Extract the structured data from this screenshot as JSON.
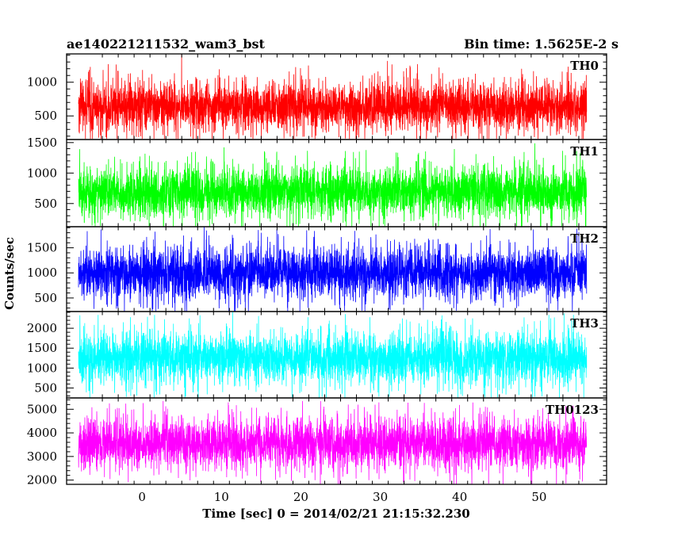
{
  "figure": {
    "title_left": "ae140221211532_wam3_bst",
    "title_right": "Bin time: 1.5625E-2 s",
    "xlabel": "Time [sec] 0 = 2014/02/21 21:15:32.230",
    "ylabel": "Counts/sec"
  },
  "chart_data": [
    {
      "type": "line",
      "name": "TH0",
      "color": "#ff0000",
      "xlim": [
        -9.5,
        58.5
      ],
      "ylim": [
        150,
        1420
      ],
      "yticks": [
        500,
        1000
      ],
      "data": {
        "x_start": -8.0,
        "x_end": 56.0,
        "bin_time": 0.015625,
        "min": 160,
        "max": 1420,
        "mean": 640,
        "spread": 170
      }
    },
    {
      "type": "line",
      "name": "TH1",
      "color": "#00ff00",
      "xlim": [
        -9.5,
        58.5
      ],
      "ylim": [
        120,
        1550
      ],
      "yticks": [
        500,
        1000,
        1500
      ],
      "data": {
        "x_start": -8.0,
        "x_end": 56.0,
        "bin_time": 0.015625,
        "min": 120,
        "max": 1550,
        "mean": 690,
        "spread": 190
      }
    },
    {
      "type": "line",
      "name": "TH2",
      "color": "#0000ff",
      "xlim": [
        -9.5,
        58.5
      ],
      "ylim": [
        230,
        1920
      ],
      "yticks": [
        500,
        1000,
        1500
      ],
      "data": {
        "x_start": -8.0,
        "x_end": 56.0,
        "bin_time": 0.015625,
        "min": 230,
        "max": 1920,
        "mean": 1000,
        "spread": 240
      }
    },
    {
      "type": "line",
      "name": "TH3",
      "color": "#00ffff",
      "xlim": [
        -9.5,
        58.5
      ],
      "ylim": [
        250,
        2420
      ],
      "yticks": [
        500,
        1000,
        1500,
        2000
      ],
      "data": {
        "x_start": -8.0,
        "x_end": 56.0,
        "bin_time": 0.015625,
        "min": 250,
        "max": 2420,
        "mean": 1250,
        "spread": 300
      }
    },
    {
      "type": "line",
      "name": "TH0123",
      "color": "#ff00ff",
      "xlim": [
        -9.5,
        58.5
      ],
      "ylim": [
        1820,
        5480
      ],
      "yticks": [
        2000,
        3000,
        4000,
        5000
      ],
      "data": {
        "x_start": -8.0,
        "x_end": 56.0,
        "bin_time": 0.015625,
        "min": 1820,
        "max": 5480,
        "mean": 3550,
        "spread": 500
      }
    }
  ],
  "xaxis": {
    "ticks": [
      0,
      10,
      20,
      30,
      40,
      50
    ],
    "tick_labels": [
      "0",
      "10",
      "20",
      "30",
      "40",
      "50"
    ]
  }
}
